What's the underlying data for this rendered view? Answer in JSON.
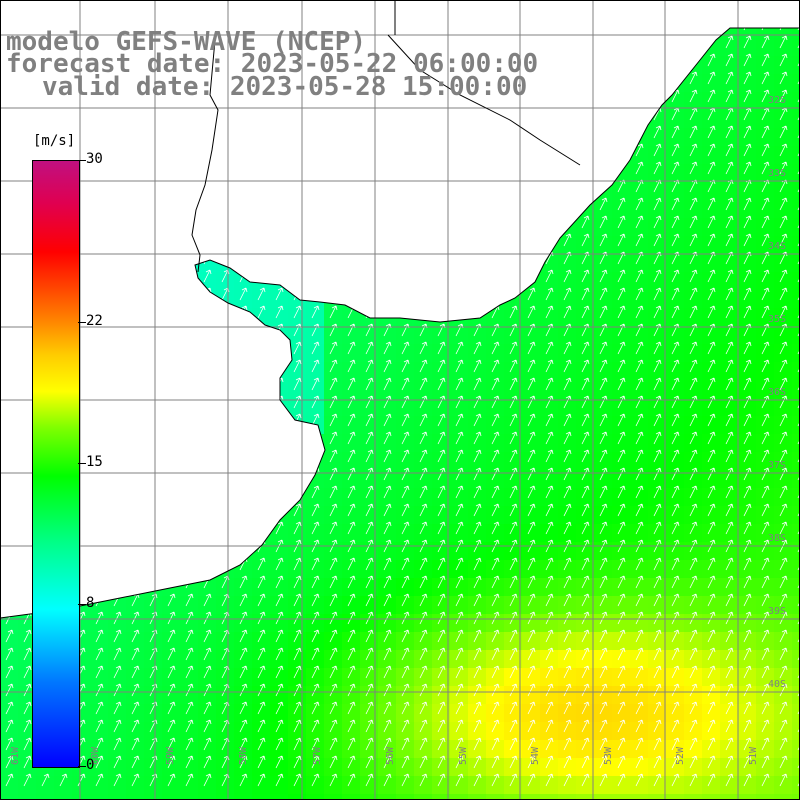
{
  "title": {
    "model": "modelo GEFS-WAVE (NCEP)",
    "forecast": "forecast date: 2023-05-22 06:00:00",
    "valid": "valid date: 2023-05-28 15:00:00"
  },
  "colorbar": {
    "unit": "[m/s]",
    "ticks": [
      {
        "label": "30",
        "value": 30
      },
      {
        "label": "22",
        "value": 22
      },
      {
        "label": "15",
        "value": 15
      },
      {
        "label": "8",
        "value": 8
      },
      {
        "label": "0",
        "value": 0
      }
    ],
    "range": [
      0,
      30
    ],
    "colors": [
      "#0000ff",
      "#0077ff",
      "#00ffff",
      "#00ff88",
      "#00ff00",
      "#7fff00",
      "#ffff00",
      "#ffcc00",
      "#ff8000",
      "#ff0000",
      "#e00050",
      "#c01080"
    ]
  },
  "map": {
    "lon_labels": [
      "61W",
      "60W",
      "59W",
      "58W",
      "57W",
      "56W",
      "55W",
      "54W",
      "53W",
      "52W",
      "51W"
    ],
    "lat_labels": [
      "32S",
      "33S",
      "34S",
      "35S",
      "36S",
      "37S",
      "38S",
      "39S",
      "40S"
    ],
    "land_color": "#ffffff",
    "coast_color": "#000000",
    "grid_color": "#808080",
    "wind_field": "wind speed (m/s) shaded with direction arrows from SW toward NE"
  }
}
